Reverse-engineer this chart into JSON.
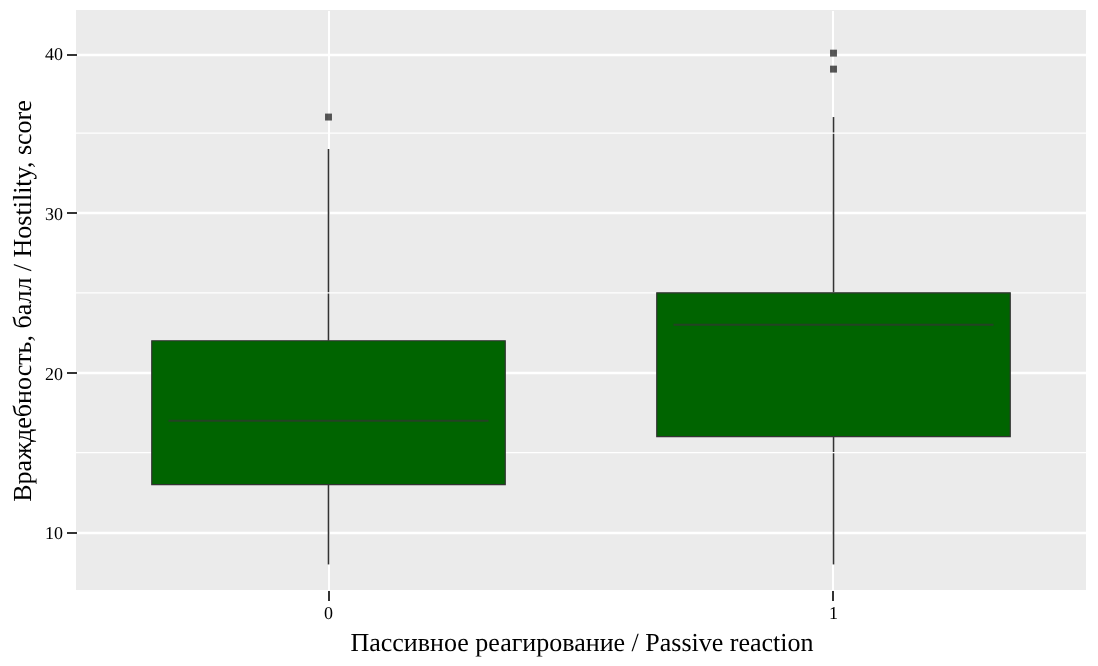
{
  "chart_data": {
    "type": "box",
    "xlabel": "Пассивное реагирование / Passive reaction",
    "ylabel": "Враждебность, балл / Hostility, score",
    "categories": [
      "0",
      "1"
    ],
    "boxes": [
      {
        "low": 8,
        "q1": 13,
        "median": 17,
        "q3": 22,
        "high": 34,
        "outliers": [
          36
        ]
      },
      {
        "low": 8,
        "q1": 16,
        "median": 23,
        "q3": 25,
        "high": 36,
        "outliers": [
          39,
          40
        ]
      }
    ],
    "color": "#006400",
    "ylim": [
      6.4,
      42.7
    ],
    "yticks": [
      10,
      20,
      30,
      40
    ],
    "grid": true,
    "marker": "square"
  }
}
